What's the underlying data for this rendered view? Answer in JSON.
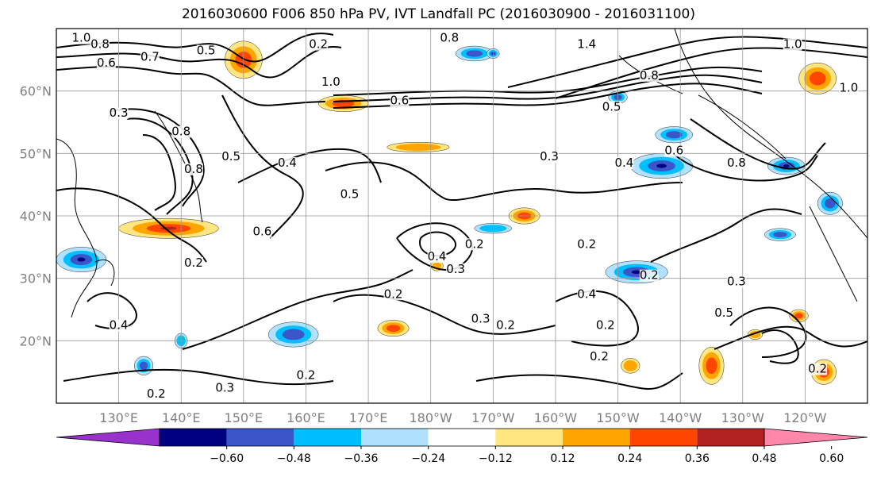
{
  "chart_data": {
    "type": "heatmap",
    "title": "2016030600 F006 850 hPa PV, IVT Landfall PC (2016030900 - 2016031100)",
    "lat_ticks": [
      "60°N",
      "50°N",
      "40°N",
      "30°N",
      "20°N"
    ],
    "lon_ticks": [
      "130°E",
      "140°E",
      "150°E",
      "160°E",
      "170°E",
      "180°W",
      "170°W",
      "160°W",
      "150°W",
      "140°W",
      "130°W",
      "120°W"
    ],
    "extent": {
      "lon_min": 120,
      "lon_max": 250,
      "lat_min": 10,
      "lat_max": 70
    },
    "colorbar": {
      "levels": [
        -0.6,
        -0.48,
        -0.36,
        -0.24,
        -0.12,
        0.12,
        0.24,
        0.36,
        0.48,
        0.6
      ],
      "tick_labels": [
        "−0.60",
        "−0.48",
        "−0.36",
        "−0.24",
        "−0.12",
        "0.12",
        "0.24",
        "0.36",
        "0.48",
        "0.60"
      ],
      "colors": [
        "#9932cc",
        "#000080",
        "#3a56c8",
        "#00bfff",
        "#b0e2ff",
        "#ffffff",
        "#ffe680",
        "#ffa500",
        "#ff4500",
        "#b22222",
        "#ff88aa"
      ],
      "extend": "both"
    },
    "contour_labels": [
      {
        "text": "1.0",
        "lon": 124,
        "lat": 68
      },
      {
        "text": "0.8",
        "lon": 127,
        "lat": 67
      },
      {
        "text": "0.6",
        "lon": 128,
        "lat": 64
      },
      {
        "text": "0.7",
        "lon": 135,
        "lat": 65
      },
      {
        "text": "0.5",
        "lon": 144,
        "lat": 66
      },
      {
        "text": "0.2",
        "lon": 162,
        "lat": 67
      },
      {
        "text": "1.0",
        "lon": 164,
        "lat": 61
      },
      {
        "text": "0.6",
        "lon": 175,
        "lat": 58
      },
      {
        "text": "0.8",
        "lon": 183,
        "lat": 68
      },
      {
        "text": "1.4",
        "lon": 205,
        "lat": 67
      },
      {
        "text": "0.8",
        "lon": 215,
        "lat": 62
      },
      {
        "text": "0.5",
        "lon": 209,
        "lat": 57
      },
      {
        "text": "1.0",
        "lon": 238,
        "lat": 67
      },
      {
        "text": "1.0",
        "lon": 247,
        "lat": 60
      },
      {
        "text": "0.3",
        "lon": 130,
        "lat": 56
      },
      {
        "text": "0.5",
        "lon": 148,
        "lat": 49
      },
      {
        "text": "0.4",
        "lon": 157,
        "lat": 48
      },
      {
        "text": "0.3",
        "lon": 199,
        "lat": 49
      },
      {
        "text": "0.4",
        "lon": 211,
        "lat": 48
      },
      {
        "text": "0.6",
        "lon": 219,
        "lat": 50
      },
      {
        "text": "0.8",
        "lon": 229,
        "lat": 48
      },
      {
        "text": "0.5",
        "lon": 167,
        "lat": 43
      },
      {
        "text": "0.6",
        "lon": 153,
        "lat": 37
      },
      {
        "text": "0.2",
        "lon": 142,
        "lat": 32
      },
      {
        "text": "0.2",
        "lon": 187,
        "lat": 35
      },
      {
        "text": "0.3",
        "lon": 184,
        "lat": 31
      },
      {
        "text": "0.4",
        "lon": 181,
        "lat": 33
      },
      {
        "text": "0.2",
        "lon": 174,
        "lat": 27
      },
      {
        "text": "0.4",
        "lon": 205,
        "lat": 27
      },
      {
        "text": "0.3",
        "lon": 188,
        "lat": 23
      },
      {
        "text": "0.2",
        "lon": 192,
        "lat": 22
      },
      {
        "text": "0.2",
        "lon": 208,
        "lat": 22
      },
      {
        "text": "0.2",
        "lon": 215,
        "lat": 30
      },
      {
        "text": "0.3",
        "lon": 229,
        "lat": 29
      },
      {
        "text": "0.2",
        "lon": 207,
        "lat": 17
      },
      {
        "text": "0.2",
        "lon": 160,
        "lat": 14
      },
      {
        "text": "0.3",
        "lon": 147,
        "lat": 12
      },
      {
        "text": "0.2",
        "lon": 136,
        "lat": 11
      },
      {
        "text": "0.5",
        "lon": 227,
        "lat": 24
      },
      {
        "text": "0.2",
        "lon": 242,
        "lat": 15
      },
      {
        "text": "0.2",
        "lon": 205,
        "lat": 35
      },
      {
        "text": "0.4",
        "lon": 130,
        "lat": 22
      },
      {
        "text": "0.8",
        "lon": 140,
        "lat": 53
      },
      {
        "text": "0.8",
        "lon": 142,
        "lat": 47
      }
    ],
    "shaded_features": [
      {
        "sign": "pos",
        "lon": 150,
        "lat": 65,
        "rx": 3,
        "ry": 3,
        "level": 0.36
      },
      {
        "sign": "pos",
        "lon": 166,
        "lat": 58,
        "rx": 4,
        "ry": 1.3,
        "level": 0.36
      },
      {
        "sign": "pos",
        "lon": 242,
        "lat": 62,
        "rx": 3,
        "ry": 2.5,
        "level": 0.36
      },
      {
        "sign": "pos",
        "lon": 178,
        "lat": 51,
        "rx": 5,
        "ry": 0.8,
        "level": 0.24
      },
      {
        "sign": "pos",
        "lon": 138,
        "lat": 38,
        "rx": 8,
        "ry": 1.6,
        "level": 0.48
      },
      {
        "sign": "pos",
        "lon": 195,
        "lat": 40,
        "rx": 2.5,
        "ry": 1.3,
        "level": 0.36
      },
      {
        "sign": "pos",
        "lon": 174,
        "lat": 22,
        "rx": 2.5,
        "ry": 1.3,
        "level": 0.36
      },
      {
        "sign": "pos",
        "lon": 225,
        "lat": 16,
        "rx": 2,
        "ry": 3,
        "level": 0.36
      },
      {
        "sign": "pos",
        "lon": 243,
        "lat": 15,
        "rx": 2,
        "ry": 2,
        "level": 0.36
      },
      {
        "sign": "pos",
        "lon": 239,
        "lat": 24,
        "rx": 1.5,
        "ry": 1,
        "level": 0.36
      },
      {
        "sign": "pos",
        "lon": 212,
        "lat": 16,
        "rx": 1.5,
        "ry": 1.2,
        "level": 0.24
      },
      {
        "sign": "pos",
        "lon": 181,
        "lat": 32,
        "rx": 1,
        "ry": 0.8,
        "level": 0.24
      },
      {
        "sign": "pos",
        "lon": 232,
        "lat": 21,
        "rx": 1.2,
        "ry": 0.8,
        "level": 0.24
      },
      {
        "sign": "neg",
        "lon": 187,
        "lat": 66,
        "rx": 3,
        "ry": 1.2,
        "level": -0.36
      },
      {
        "sign": "neg",
        "lon": 124,
        "lat": 33,
        "rx": 4,
        "ry": 2,
        "level": -0.48
      },
      {
        "sign": "neg",
        "lon": 217,
        "lat": 48,
        "rx": 5,
        "ry": 2,
        "level": -0.48
      },
      {
        "sign": "neg",
        "lon": 237,
        "lat": 48,
        "rx": 3,
        "ry": 1.4,
        "level": -0.48
      },
      {
        "sign": "neg",
        "lon": 244,
        "lat": 42,
        "rx": 2,
        "ry": 1.8,
        "level": -0.36
      },
      {
        "sign": "neg",
        "lon": 219,
        "lat": 53,
        "rx": 3,
        "ry": 1.3,
        "level": -0.36
      },
      {
        "sign": "neg",
        "lon": 213,
        "lat": 31,
        "rx": 5,
        "ry": 1.8,
        "level": -0.48
      },
      {
        "sign": "neg",
        "lon": 158,
        "lat": 21,
        "rx": 4,
        "ry": 2,
        "level": -0.36
      },
      {
        "sign": "neg",
        "lon": 190,
        "lat": 38,
        "rx": 3,
        "ry": 0.8,
        "level": -0.24
      },
      {
        "sign": "neg",
        "lon": 236,
        "lat": 37,
        "rx": 2.5,
        "ry": 1,
        "level": -0.36
      },
      {
        "sign": "neg",
        "lon": 134,
        "lat": 16,
        "rx": 1.5,
        "ry": 1.5,
        "level": -0.36
      },
      {
        "sign": "neg",
        "lon": 140,
        "lat": 20,
        "rx": 1,
        "ry": 1.2,
        "level": -0.24
      },
      {
        "sign": "neg",
        "lon": 210,
        "lat": 59,
        "rx": 1.5,
        "ry": 1,
        "level": -0.36
      },
      {
        "sign": "neg",
        "lon": 190,
        "lat": 66,
        "rx": 1,
        "ry": 0.8,
        "level": -0.48
      }
    ]
  }
}
